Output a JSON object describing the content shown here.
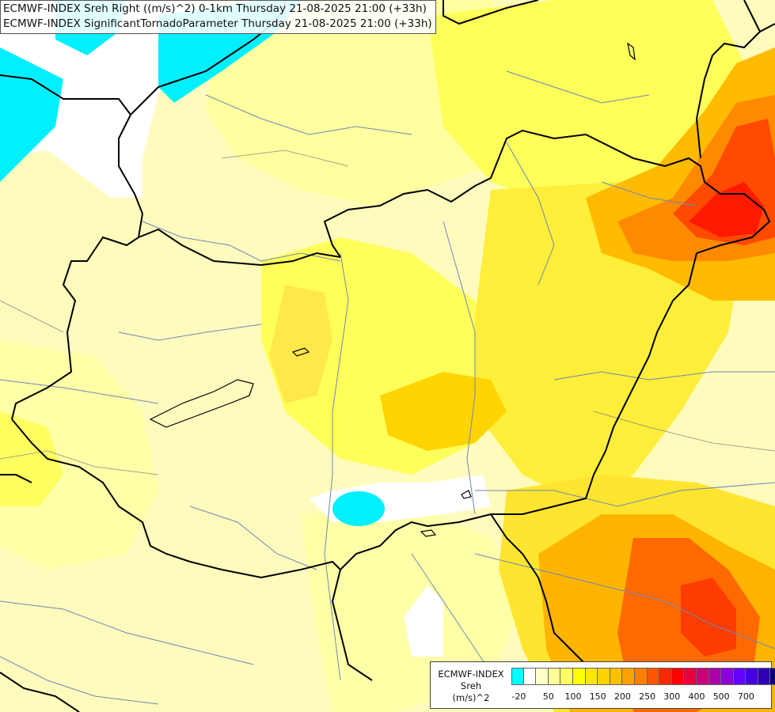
{
  "header": {
    "line1": "ECMWF-INDEX Sreh Right ((m/s)^2) 0-1km Thursday 21-08-2025 21:00 (+33h)",
    "line2": "ECMWF-INDEX SignificantTornadoParameter Thursday 21-08-2025 21:00 (+33h)"
  },
  "legend": {
    "title_line1": "ECMWF-INDEX",
    "title_line2": "Sreh",
    "title_line3": "(m/s)^2",
    "colors": [
      "#00ffff",
      "#ffffff",
      "#ffffc8",
      "#ffff96",
      "#ffff64",
      "#ffff00",
      "#ffe600",
      "#ffd200",
      "#ffbe00",
      "#ffa000",
      "#ff7f00",
      "#ff5500",
      "#ff2800",
      "#ff0000",
      "#e6003c",
      "#c80078",
      "#aa00aa",
      "#8c00dc",
      "#6400ff",
      "#4600dc",
      "#2d00b4",
      "#0a0078"
    ],
    "ticks": [
      {
        "label": "-20",
        "index": 0.6
      },
      {
        "label": "50",
        "index": 3
      },
      {
        "label": "100",
        "index": 5
      },
      {
        "label": "150",
        "index": 7
      },
      {
        "label": "200",
        "index": 9
      },
      {
        "label": "250",
        "index": 11
      },
      {
        "label": "300",
        "index": 13
      },
      {
        "label": "400",
        "index": 15
      },
      {
        "label": "500",
        "index": 17
      },
      {
        "label": "700",
        "index": 19
      }
    ]
  }
}
